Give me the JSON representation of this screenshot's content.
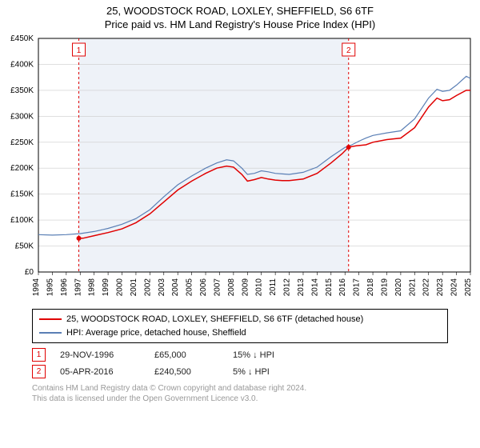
{
  "title_line1": "25, WOODSTOCK ROAD, LOXLEY, SHEFFIELD, S6 6TF",
  "title_line2": "Price paid vs. HM Land Registry's House Price Index (HPI)",
  "chart": {
    "type": "line",
    "background_color": "#ffffff",
    "shaded_band_color": "#eef2f8",
    "plot_border_color": "#000000",
    "grid_color": "#cccccc",
    "x_range": [
      1994,
      2025
    ],
    "x_ticks": [
      1994,
      1995,
      1996,
      1997,
      1998,
      1999,
      2000,
      2001,
      2002,
      2003,
      2004,
      2005,
      2006,
      2007,
      2008,
      2009,
      2010,
      2011,
      2012,
      2013,
      2014,
      2015,
      2016,
      2017,
      2018,
      2019,
      2020,
      2021,
      2022,
      2023,
      2024,
      2025
    ],
    "x_tick_fontsize": 10,
    "y_range": [
      0,
      450000
    ],
    "y_ticks": [
      0,
      50000,
      100000,
      150000,
      200000,
      250000,
      300000,
      350000,
      400000,
      450000
    ],
    "y_tick_labels": [
      "£0",
      "£50K",
      "£100K",
      "£150K",
      "£200K",
      "£250K",
      "£300K",
      "£350K",
      "£400K",
      "£450K"
    ],
    "y_tick_fontsize": 10,
    "series": [
      {
        "name": "price_paid",
        "label": "25, WOODSTOCK ROAD, LOXLEY, SHEFFIELD, S6 6TF (detached house)",
        "color": "#e00000",
        "line_width": 1.5,
        "x": [
          1996.9,
          1997.2,
          1998,
          1999,
          2000,
          2001,
          2002,
          2003,
          2004,
          2005,
          2006,
          2006.8,
          2007.5,
          2008,
          2008.6,
          2009,
          2009.5,
          2010,
          2010.5,
          2011,
          2011.5,
          2012,
          2013,
          2014,
          2015,
          2015.8,
          2016.26,
          2016.8,
          2017.5,
          2018,
          2019,
          2020,
          2021,
          2022,
          2022.6,
          2023,
          2023.5,
          2024,
          2024.7,
          2025
        ],
        "y": [
          65000,
          65000,
          70000,
          76000,
          83000,
          95000,
          112000,
          135000,
          158000,
          175000,
          190000,
          200000,
          204000,
          202000,
          188000,
          175000,
          178000,
          182000,
          179000,
          177000,
          176000,
          176000,
          179000,
          190000,
          210000,
          228000,
          240500,
          243000,
          245000,
          250000,
          255000,
          258000,
          278000,
          318000,
          335000,
          330000,
          332000,
          340000,
          350000,
          350000
        ]
      },
      {
        "name": "hpi",
        "label": "HPI: Average price, detached house, Sheffield",
        "color": "#5a7fb5",
        "line_width": 1.2,
        "x": [
          1994,
          1995,
          1996,
          1997,
          1998,
          1999,
          2000,
          2001,
          2002,
          2003,
          2004,
          2005,
          2006,
          2006.8,
          2007.5,
          2008,
          2008.6,
          2009,
          2009.5,
          2010,
          2010.5,
          2011,
          2011.5,
          2012,
          2013,
          2014,
          2015,
          2016,
          2016.5,
          2017,
          2017.5,
          2018,
          2019,
          2020,
          2021,
          2022,
          2022.6,
          2023,
          2023.5,
          2024,
          2024.7,
          2025
        ],
        "y": [
          72000,
          71000,
          72000,
          74000,
          78000,
          84000,
          92000,
          103000,
          120000,
          145000,
          168000,
          185000,
          200000,
          210000,
          216000,
          214000,
          200000,
          188000,
          190000,
          195000,
          193000,
          190000,
          189000,
          188000,
          192000,
          202000,
          222000,
          240000,
          245000,
          252000,
          258000,
          263000,
          268000,
          272000,
          295000,
          335000,
          352000,
          348000,
          350000,
          360000,
          377000,
          373000
        ]
      }
    ],
    "event_markers": [
      {
        "n": "1",
        "x": 1996.9,
        "y": 65000,
        "line_color": "#e00000",
        "dash": "3,3"
      },
      {
        "n": "2",
        "x": 2016.26,
        "y": 240500,
        "line_color": "#e00000",
        "dash": "3,3"
      }
    ]
  },
  "legend": {
    "border_color": "#000000",
    "rows": [
      {
        "color": "#e00000",
        "label": "25, WOODSTOCK ROAD, LOXLEY, SHEFFIELD, S6 6TF (detached house)"
      },
      {
        "color": "#5a7fb5",
        "label": "HPI: Average price, detached house, Sheffield"
      }
    ]
  },
  "events_table": {
    "rows": [
      {
        "n": "1",
        "date": "29-NOV-1996",
        "price": "£65,000",
        "delta": "15% ↓ HPI"
      },
      {
        "n": "2",
        "date": "05-APR-2016",
        "price": "£240,500",
        "delta": "5% ↓ HPI"
      }
    ]
  },
  "footer": {
    "line1": "Contains HM Land Registry data © Crown copyright and database right 2024.",
    "line2": "This data is licensed under the Open Government Licence v3.0."
  }
}
